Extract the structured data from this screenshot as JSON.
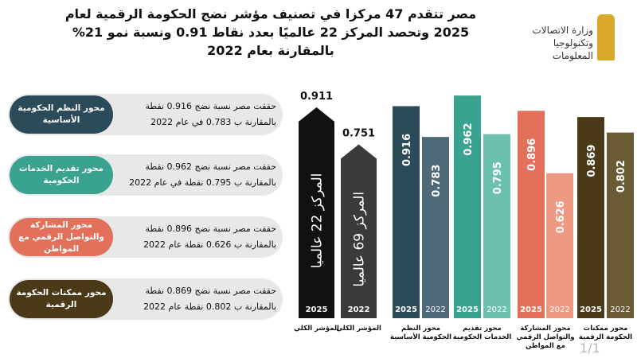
{
  "header": {
    "title": [
      "مصر تتقدم 47 مركزا في تصنيف مؤشر نضج الحكومة الرقمية لعام",
      "2025 وتحصد المركز 22 عالميًا بعدد نقاط 0.91  ونسبة نمو 21%",
      "بالمقارنة بعام 2022"
    ],
    "logo": [
      "وزارة الاتصالات",
      "وتكنولوجيا المعلومات"
    ]
  },
  "panels": [
    {
      "label": "محور النظم الحكومية الأساسية",
      "lines": [
        "حققت مصر نسبة نضج 0.916 نقطة",
        "بالمقارنة ب 0.783 في عام 2022"
      ],
      "color": "#2b4a5a"
    },
    {
      "label": "محور تقديم الخدمات الحكومية",
      "lines": [
        "حققت مصر نسبة نضج 0.962 نقطة",
        "بالمقارنة ب 0.795 نقطة في عام 2022"
      ],
      "color": "#3aa38f"
    },
    {
      "label": "محور المشاركة والتواصل الرقمي مع المواطن",
      "lines": [
        "حققت مصر نسبة نضج 0.896 نقطة",
        "بالمقارنة ب 0.626 نقطة عام 2022"
      ],
      "color": "#e2705a"
    },
    {
      "label": "محور ممكنات الحكومة الرقمية",
      "lines": [
        "حققت مصر نسبة نضج 0.869 نقطة",
        "بالمقارنة ب 0.802 نقطة عام 2022"
      ],
      "color": "#4a3a18"
    }
  ],
  "chart_data": {
    "type": "bar",
    "groups": [
      {
        "label": "المؤشر الكلي",
        "bars": [
          {
            "year": "2025",
            "value": 0.911,
            "color": "#111111",
            "note": "المركز 22 عالميا"
          }
        ]
      },
      {
        "label": "المؤشر الكلي",
        "bars": [
          {
            "year": "2022",
            "value": 0.751,
            "color": "#3a3a3a",
            "note": "المركز 69 عالميا"
          }
        ]
      },
      {
        "label": "محور النظم الحكومية الأساسية",
        "bars": [
          {
            "year": "2025",
            "value": 0.916,
            "color": "#2b4a5a"
          },
          {
            "year": "2022",
            "value": 0.783,
            "color": "#4e6a78"
          }
        ]
      },
      {
        "label": "محور تقديم الخدمات الحكومية",
        "bars": [
          {
            "year": "2025",
            "value": 0.962,
            "color": "#3aa38f"
          },
          {
            "year": "2022",
            "value": 0.795,
            "color": "#6cc0ae"
          }
        ]
      },
      {
        "label": "محور المشاركة والتواصل الرقمي مع المواطن",
        "bars": [
          {
            "year": "2025",
            "value": 0.896,
            "color": "#e2705a"
          },
          {
            "year": "2022",
            "value": 0.626,
            "color": "#ee9a83"
          }
        ]
      },
      {
        "label": "محور ممكنات الحكومة الرقمية",
        "bars": [
          {
            "year": "2025",
            "value": 0.869,
            "color": "#4a3a18"
          },
          {
            "year": "2022",
            "value": 0.802,
            "color": "#6a5a35"
          }
        ]
      }
    ]
  },
  "page_number": "1/1"
}
